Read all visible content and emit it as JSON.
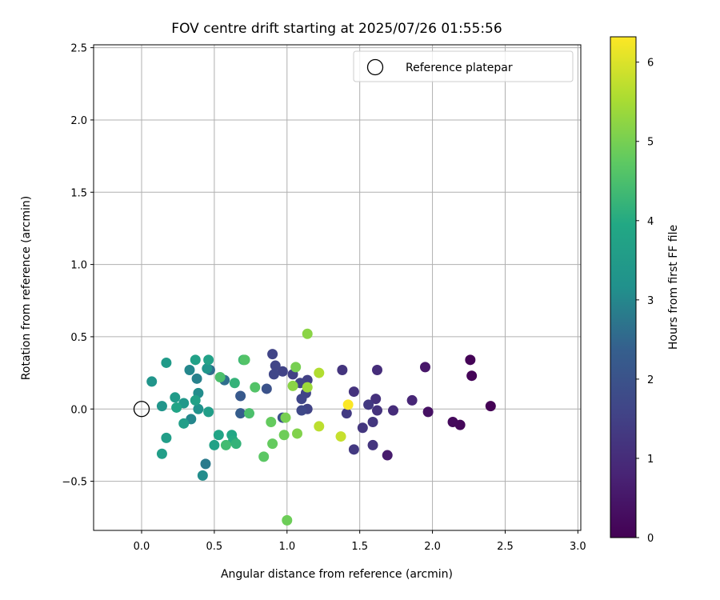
{
  "chart_data": {
    "type": "scatter",
    "title": "FOV centre drift starting at 2025/07/26 01:55:56",
    "xlabel": "Angular distance from reference (arcmin)",
    "ylabel": "Rotation from reference (arcmin)",
    "xlim": [
      -0.33,
      3.02
    ],
    "ylim": [
      -0.84,
      2.52
    ],
    "xticks": [
      0.0,
      0.5,
      1.0,
      1.5,
      2.0,
      2.5,
      3.0
    ],
    "xtick_labels": [
      "0.0",
      "0.5",
      "1.0",
      "1.5",
      "2.0",
      "2.5",
      "3.0"
    ],
    "yticks": [
      -0.5,
      0.0,
      0.5,
      1.0,
      1.5,
      2.0,
      2.5
    ],
    "ytick_labels": [
      "−0.5",
      "0.0",
      "0.5",
      "1.0",
      "1.5",
      "2.0",
      "2.5"
    ],
    "grid": true,
    "legend": {
      "placement": "top-right",
      "entries": [
        "Reference platepar"
      ]
    },
    "reference_point": {
      "x": 0.0,
      "y": 0.0
    },
    "colorbar": {
      "label": "Hours from first FF file",
      "colormap": "viridis",
      "range": [
        0,
        6.32
      ],
      "ticks": [
        0,
        1,
        2,
        3,
        4,
        5,
        6
      ],
      "tick_labels": [
        "0",
        "1",
        "2",
        "3",
        "4",
        "5",
        "6"
      ]
    },
    "points": [
      {
        "x": 2.4,
        "y": 0.02,
        "c": 0.0
      },
      {
        "x": 2.26,
        "y": 0.34,
        "c": 0.05
      },
      {
        "x": 2.27,
        "y": 0.23,
        "c": 0.1
      },
      {
        "x": 2.19,
        "y": -0.11,
        "c": 0.15
      },
      {
        "x": 2.14,
        "y": -0.09,
        "c": 0.2
      },
      {
        "x": 1.97,
        "y": -0.02,
        "c": 0.35
      },
      {
        "x": 1.95,
        "y": 0.29,
        "c": 0.5
      },
      {
        "x": 1.69,
        "y": -0.32,
        "c": 0.6
      },
      {
        "x": 1.86,
        "y": 0.06,
        "c": 0.85
      },
      {
        "x": 1.73,
        "y": -0.01,
        "c": 1.0
      },
      {
        "x": 1.62,
        "y": 0.27,
        "c": 1.0
      },
      {
        "x": 1.61,
        "y": 0.07,
        "c": 1.1
      },
      {
        "x": 1.62,
        "y": -0.01,
        "c": 1.15
      },
      {
        "x": 1.59,
        "y": -0.09,
        "c": 1.25
      },
      {
        "x": 1.59,
        "y": -0.25,
        "c": 1.2
      },
      {
        "x": 1.56,
        "y": 0.03,
        "c": 1.3
      },
      {
        "x": 1.52,
        "y": -0.13,
        "c": 1.25
      },
      {
        "x": 1.46,
        "y": 0.12,
        "c": 1.15
      },
      {
        "x": 1.46,
        "y": -0.28,
        "c": 1.3
      },
      {
        "x": 1.41,
        "y": -0.03,
        "c": 1.35
      },
      {
        "x": 1.38,
        "y": 0.27,
        "c": 1.2
      },
      {
        "x": 1.14,
        "y": 0.2,
        "c": 1.5
      },
      {
        "x": 1.13,
        "y": 0.11,
        "c": 1.6
      },
      {
        "x": 1.14,
        "y": 0.0,
        "c": 1.55
      },
      {
        "x": 1.1,
        "y": -0.01,
        "c": 1.7
      },
      {
        "x": 1.1,
        "y": 0.07,
        "c": 1.65
      },
      {
        "x": 1.09,
        "y": 0.18,
        "c": 1.6
      },
      {
        "x": 1.04,
        "y": 0.24,
        "c": 1.5
      },
      {
        "x": 0.97,
        "y": 0.26,
        "c": 1.55
      },
      {
        "x": 0.92,
        "y": 0.3,
        "c": 1.6
      },
      {
        "x": 0.91,
        "y": 0.24,
        "c": 1.65
      },
      {
        "x": 0.9,
        "y": 0.38,
        "c": 1.6
      },
      {
        "x": 0.97,
        "y": -0.06,
        "c": 1.9
      },
      {
        "x": 0.86,
        "y": 0.14,
        "c": 2.0
      },
      {
        "x": 0.68,
        "y": 0.09,
        "c": 2.2
      },
      {
        "x": 0.68,
        "y": -0.03,
        "c": 2.3
      },
      {
        "x": 0.57,
        "y": 0.2,
        "c": 2.6
      },
      {
        "x": 0.47,
        "y": 0.27,
        "c": 2.6
      },
      {
        "x": 0.44,
        "y": -0.38,
        "c": 2.8
      },
      {
        "x": 0.38,
        "y": 0.21,
        "c": 2.9
      },
      {
        "x": 0.33,
        "y": 0.27,
        "c": 3.0
      },
      {
        "x": 0.34,
        "y": -0.07,
        "c": 3.0
      },
      {
        "x": 0.42,
        "y": -0.46,
        "c": 3.1
      },
      {
        "x": 0.39,
        "y": 0.11,
        "c": 3.1
      },
      {
        "x": 0.39,
        "y": 0.0,
        "c": 3.2
      },
      {
        "x": 0.07,
        "y": 0.19,
        "c": 3.3
      },
      {
        "x": 0.14,
        "y": 0.02,
        "c": 3.3
      },
      {
        "x": 0.45,
        "y": 0.28,
        "c": 3.3
      },
      {
        "x": 0.29,
        "y": 0.04,
        "c": 3.4
      },
      {
        "x": 0.17,
        "y": 0.32,
        "c": 3.5
      },
      {
        "x": 0.23,
        "y": 0.08,
        "c": 3.5
      },
      {
        "x": 0.14,
        "y": -0.31,
        "c": 3.6
      },
      {
        "x": 0.17,
        "y": -0.2,
        "c": 3.6
      },
      {
        "x": 0.29,
        "y": -0.1,
        "c": 3.6
      },
      {
        "x": 0.46,
        "y": -0.02,
        "c": 3.6
      },
      {
        "x": 0.46,
        "y": 0.34,
        "c": 3.7
      },
      {
        "x": 0.37,
        "y": 0.34,
        "c": 3.7
      },
      {
        "x": 0.37,
        "y": 0.06,
        "c": 3.7
      },
      {
        "x": 0.24,
        "y": 0.01,
        "c": 3.8
      },
      {
        "x": 0.5,
        "y": -0.25,
        "c": 3.7
      },
      {
        "x": 0.53,
        "y": -0.18,
        "c": 3.8
      },
      {
        "x": 0.62,
        "y": -0.18,
        "c": 3.9
      },
      {
        "x": 0.63,
        "y": -0.22,
        "c": 4.0
      },
      {
        "x": 0.65,
        "y": -0.24,
        "c": 4.2
      },
      {
        "x": 0.58,
        "y": -0.25,
        "c": 4.4
      },
      {
        "x": 0.64,
        "y": 0.18,
        "c": 4.2
      },
      {
        "x": 0.54,
        "y": 0.22,
        "c": 4.5
      },
      {
        "x": 0.7,
        "y": 0.34,
        "c": 4.3
      },
      {
        "x": 0.71,
        "y": 0.34,
        "c": 4.6
      },
      {
        "x": 0.74,
        "y": -0.03,
        "c": 4.5
      },
      {
        "x": 0.78,
        "y": 0.15,
        "c": 4.6
      },
      {
        "x": 0.84,
        "y": -0.33,
        "c": 4.7
      },
      {
        "x": 0.89,
        "y": -0.09,
        "c": 4.8
      },
      {
        "x": 0.9,
        "y": -0.24,
        "c": 4.8
      },
      {
        "x": 0.98,
        "y": -0.18,
        "c": 4.9
      },
      {
        "x": 0.99,
        "y": -0.06,
        "c": 5.0
      },
      {
        "x": 1.0,
        "y": -0.77,
        "c": 4.9
      },
      {
        "x": 1.06,
        "y": 0.29,
        "c": 5.0
      },
      {
        "x": 1.07,
        "y": -0.17,
        "c": 5.1
      },
      {
        "x": 1.04,
        "y": 0.16,
        "c": 5.2
      },
      {
        "x": 1.14,
        "y": 0.52,
        "c": 5.2
      },
      {
        "x": 1.14,
        "y": 0.15,
        "c": 5.4
      },
      {
        "x": 1.22,
        "y": 0.25,
        "c": 5.6
      },
      {
        "x": 1.22,
        "y": -0.12,
        "c": 5.7
      },
      {
        "x": 1.37,
        "y": -0.19,
        "c": 5.8
      },
      {
        "x": 1.42,
        "y": 0.03,
        "c": 6.3
      }
    ]
  }
}
